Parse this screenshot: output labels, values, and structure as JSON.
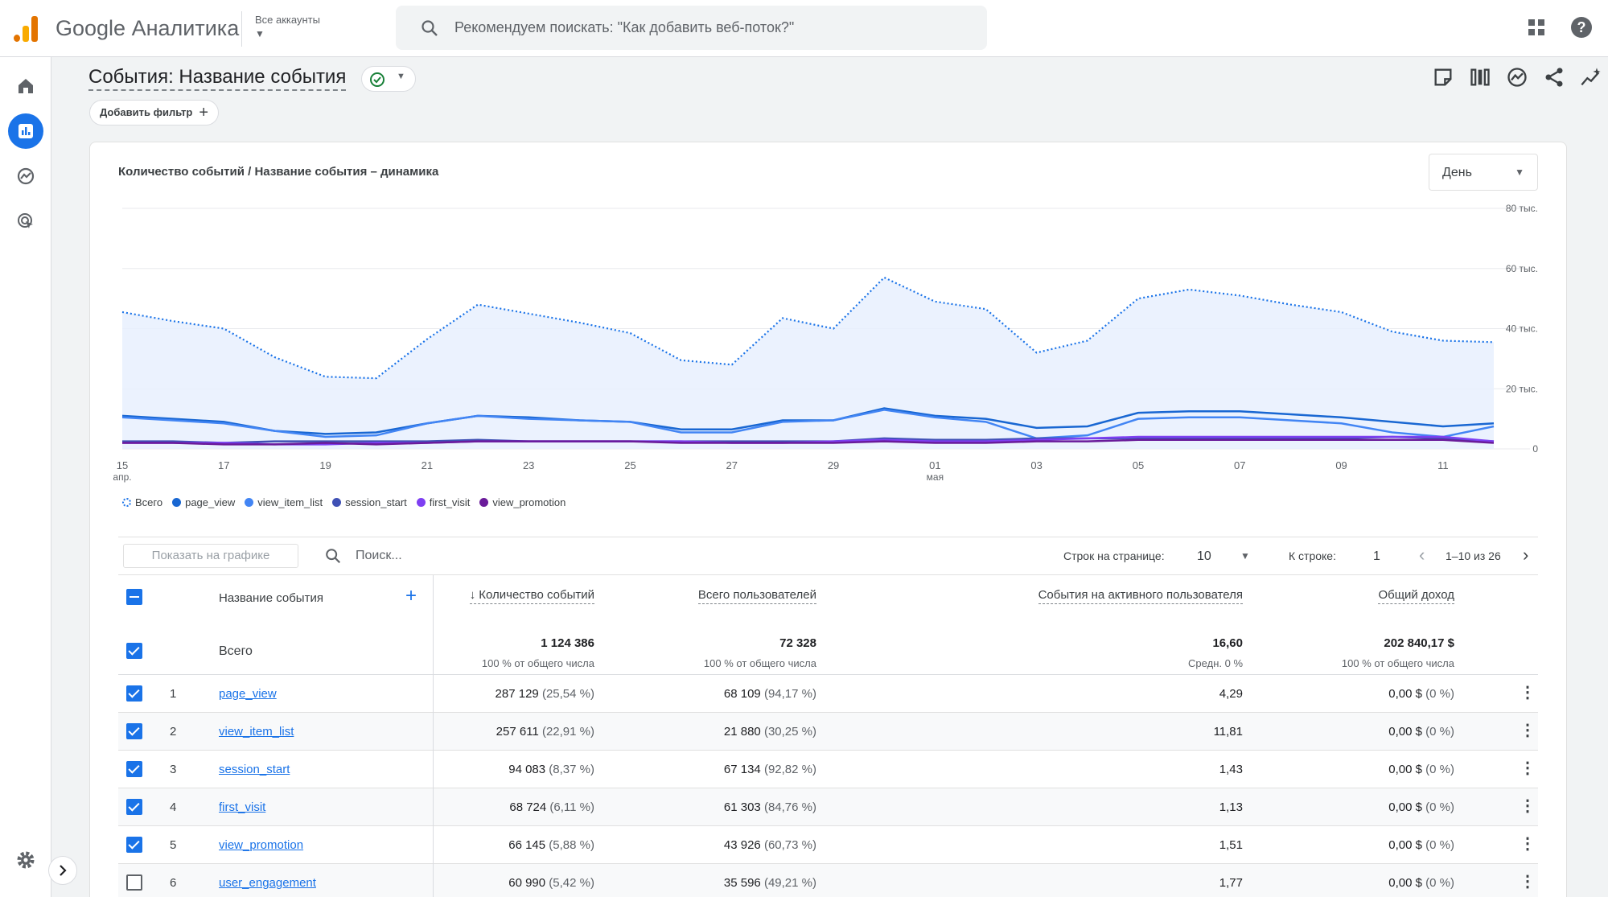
{
  "app": {
    "brand": "Google Аналитика",
    "accounts_label": "Все аккаунты",
    "search_placeholder": "Рекомендуем поискать: \"Как добавить веб-поток?\"",
    "help_label": "?"
  },
  "page": {
    "title": "События: Название события",
    "add_filter": "Добавить фильтр"
  },
  "chart": {
    "title": "Количество событий / Название события – динамика",
    "granularity": "День"
  },
  "chart_data": {
    "type": "line",
    "x": [
      "15 апр.",
      "16",
      "17",
      "18",
      "19",
      "20",
      "21",
      "22",
      "23",
      "24",
      "25",
      "26",
      "27",
      "28",
      "29",
      "30",
      "01 мая",
      "02",
      "03",
      "04",
      "05",
      "06",
      "07",
      "08",
      "09",
      "10",
      "11",
      "12"
    ],
    "x_tick_labels": [
      [
        "15",
        "апр."
      ],
      [
        "17",
        ""
      ],
      [
        "19",
        ""
      ],
      [
        "21",
        ""
      ],
      [
        "23",
        ""
      ],
      [
        "25",
        ""
      ],
      [
        "27",
        ""
      ],
      [
        "29",
        ""
      ],
      [
        "01",
        "мая"
      ],
      [
        "03",
        ""
      ],
      [
        "05",
        ""
      ],
      [
        "07",
        ""
      ],
      [
        "09",
        ""
      ],
      [
        "11",
        ""
      ]
    ],
    "y_tick_labels": [
      "0",
      "20 тыс.",
      "40 тыс.",
      "60 тыс.",
      "80 тыс."
    ],
    "ylim": [
      0,
      80000
    ],
    "grid": true,
    "legend_position": "bottom-left",
    "series": [
      {
        "name": "Всего",
        "color": "#1a73e8",
        "style": "dotted-area",
        "values": [
          45500,
          42500,
          40000,
          30500,
          24000,
          23500,
          36500,
          48000,
          45000,
          42000,
          38500,
          29500,
          28000,
          43500,
          40000,
          57000,
          49000,
          46500,
          32000,
          36000,
          50000,
          53000,
          51000,
          48000,
          45500,
          39000,
          36000,
          35500
        ]
      },
      {
        "name": "page_view",
        "color": "#1967d2",
        "style": "line",
        "values": [
          11000,
          10000,
          9000,
          6000,
          5000,
          5500,
          8500,
          11000,
          10500,
          9500,
          9000,
          6500,
          6500,
          9500,
          9500,
          13500,
          11000,
          10000,
          7000,
          7500,
          12000,
          12500,
          12500,
          11500,
          10500,
          9000,
          7500,
          8500
        ]
      },
      {
        "name": "view_item_list",
        "color": "#4285f4",
        "style": "line",
        "values": [
          10500,
          9500,
          8500,
          6000,
          4000,
          4500,
          8500,
          11000,
          10000,
          9500,
          9000,
          5500,
          5500,
          9000,
          9500,
          13000,
          10500,
          9000,
          3500,
          4500,
          10000,
          10500,
          10500,
          9500,
          8500,
          5500,
          4000,
          7500
        ]
      },
      {
        "name": "session_start",
        "color": "#3f51b5",
        "style": "line",
        "values": [
          2500,
          2500,
          2000,
          2500,
          2500,
          2500,
          2500,
          3000,
          2500,
          2500,
          2500,
          2500,
          2500,
          2500,
          2500,
          3500,
          3000,
          3000,
          3500,
          3500,
          3500,
          3500,
          3500,
          3500,
          3500,
          4000,
          3500,
          2500
        ]
      },
      {
        "name": "first_visit",
        "color": "#7e3ff2",
        "style": "line",
        "values": [
          2000,
          2000,
          2000,
          1500,
          1500,
          2000,
          2000,
          2500,
          2500,
          2500,
          2500,
          2500,
          2000,
          2000,
          2500,
          3000,
          2500,
          2500,
          3000,
          3500,
          4000,
          4000,
          4000,
          4000,
          4000,
          4000,
          4000,
          2500
        ]
      },
      {
        "name": "view_promotion",
        "color": "#6a1b9a",
        "style": "line",
        "values": [
          2000,
          2000,
          1500,
          1500,
          2000,
          1500,
          2000,
          2500,
          2500,
          2500,
          2500,
          2000,
          2000,
          2000,
          2000,
          2500,
          2000,
          2000,
          2500,
          2500,
          3000,
          3000,
          3000,
          3000,
          3000,
          3000,
          3000,
          2000
        ]
      }
    ]
  },
  "table": {
    "show_on_chart": "Показать на графике",
    "search_placeholder": "Поиск...",
    "rows_per_page_label": "Строк на странице:",
    "rows_per_page_value": "10",
    "goto_label": "К строке:",
    "goto_value": "1",
    "range": "1–10 из 26",
    "col_name": "Название события",
    "columns": [
      "Количество событий",
      "Всего пользователей",
      "События на активного пользователя",
      "Общий доход"
    ],
    "total": {
      "label": "Всего",
      "values": [
        "1 124 386",
        "72 328",
        "16,60",
        "202 840,17 $"
      ],
      "subs": [
        "100 % от общего числа",
        "100 % от общего числа",
        "Средн. 0 %",
        "100 % от общего числа"
      ]
    },
    "rows": [
      {
        "idx": "1",
        "name": "page_view",
        "checked": true,
        "events": "287 129",
        "events_pct": "(25,54 %)",
        "users": "68 109",
        "users_pct": "(94,17 %)",
        "per_user": "4,29",
        "revenue": "0,00 $",
        "revenue_pct": "(0 %)"
      },
      {
        "idx": "2",
        "name": "view_item_list",
        "checked": true,
        "events": "257 611",
        "events_pct": "(22,91 %)",
        "users": "21 880",
        "users_pct": "(30,25 %)",
        "per_user": "11,81",
        "revenue": "0,00 $",
        "revenue_pct": "(0 %)"
      },
      {
        "idx": "3",
        "name": "session_start",
        "checked": true,
        "events": "94 083",
        "events_pct": "(8,37 %)",
        "users": "67 134",
        "users_pct": "(92,82 %)",
        "per_user": "1,43",
        "revenue": "0,00 $",
        "revenue_pct": "(0 %)"
      },
      {
        "idx": "4",
        "name": "first_visit",
        "checked": true,
        "events": "68 724",
        "events_pct": "(6,11 %)",
        "users": "61 303",
        "users_pct": "(84,76 %)",
        "per_user": "1,13",
        "revenue": "0,00 $",
        "revenue_pct": "(0 %)"
      },
      {
        "idx": "5",
        "name": "view_promotion",
        "checked": true,
        "events": "66 145",
        "events_pct": "(5,88 %)",
        "users": "43 926",
        "users_pct": "(60,73 %)",
        "per_user": "1,51",
        "revenue": "0,00 $",
        "revenue_pct": "(0 %)"
      },
      {
        "idx": "6",
        "name": "user_engagement",
        "checked": false,
        "events": "60 990",
        "events_pct": "(5,42 %)",
        "users": "35 596",
        "users_pct": "(49,21 %)",
        "per_user": "1,77",
        "revenue": "0,00 $",
        "revenue_pct": "(0 %)"
      }
    ]
  }
}
